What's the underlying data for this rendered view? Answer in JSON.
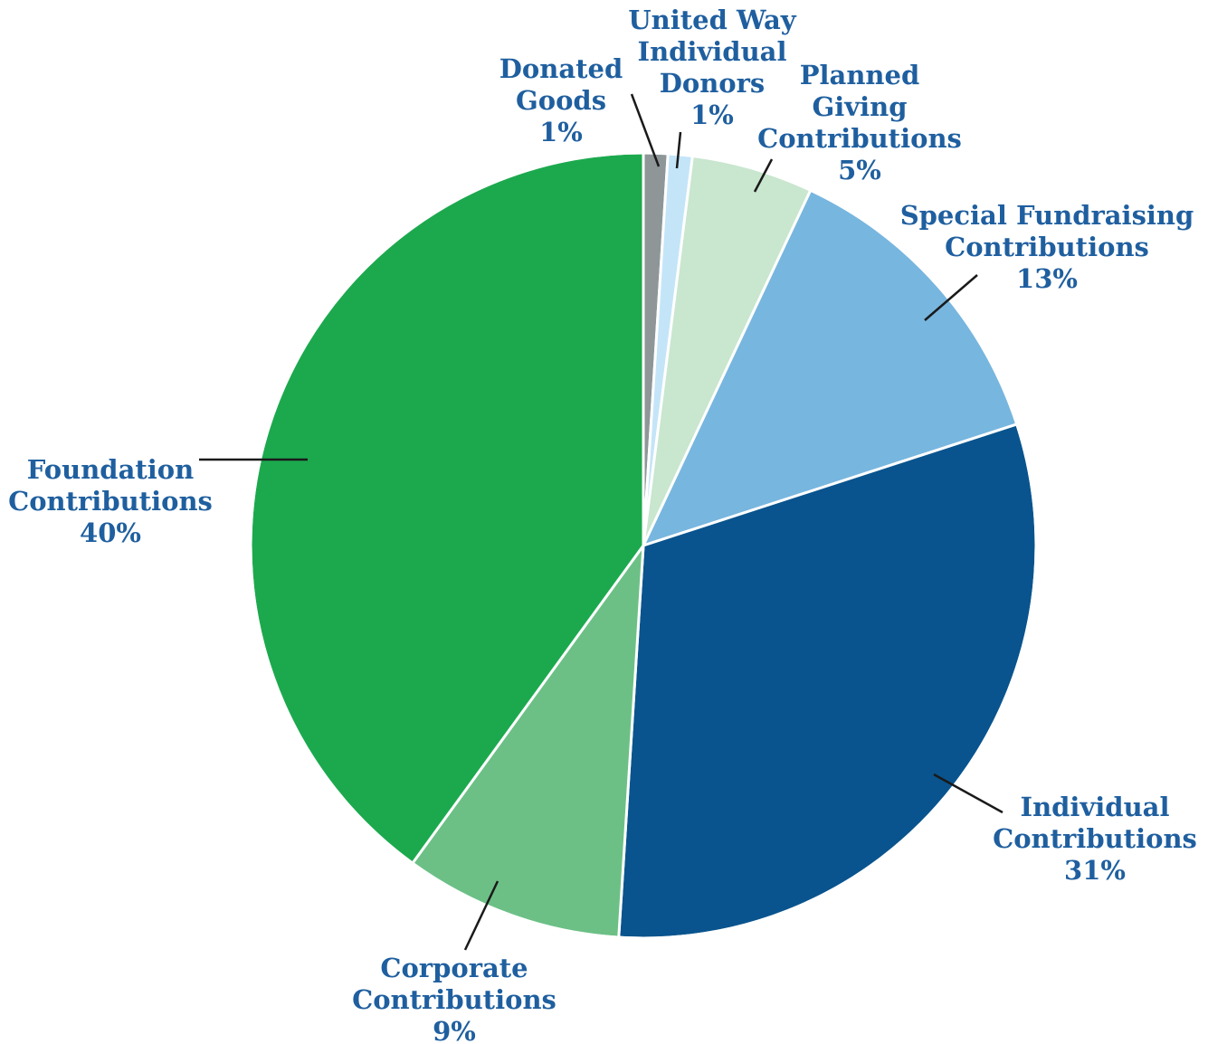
{
  "chart_data": {
    "type": "pie",
    "title": "",
    "start": "12 o'clock",
    "direction": "clockwise",
    "slices": [
      {
        "name": "Donated Goods",
        "label_lines": [
          "Donated",
          "Goods"
        ],
        "pct_label": "1%",
        "value": 1,
        "color": "#8e9697"
      },
      {
        "name": "United Way Individual Donors",
        "label_lines": [
          "United Way",
          "Individual",
          "Donors"
        ],
        "pct_label": "1%",
        "value": 1,
        "color": "#c4e5f8"
      },
      {
        "name": "Planned Giving Contributions",
        "label_lines": [
          "Planned",
          "Giving",
          "Contributions"
        ],
        "pct_label": "5%",
        "value": 5,
        "color": "#c9e6cf"
      },
      {
        "name": "Special Fundraising Contributions",
        "label_lines": [
          "Special Fundraising",
          "Contributions"
        ],
        "pct_label": "13%",
        "value": 13,
        "color": "#77b6df"
      },
      {
        "name": "Individual Contributions",
        "label_lines": [
          "Individual",
          "Contributions"
        ],
        "pct_label": "31%",
        "value": 31,
        "color": "#09548e"
      },
      {
        "name": "Corporate Contributions",
        "label_lines": [
          "Corporate",
          "Contributions"
        ],
        "pct_label": "9%",
        "value": 9,
        "color": "#6cc086"
      },
      {
        "name": "Foundation Contributions",
        "label_lines": [
          "Foundation",
          "Contributions"
        ],
        "pct_label": "40%",
        "value": 40,
        "color": "#1ca94e"
      }
    ]
  }
}
